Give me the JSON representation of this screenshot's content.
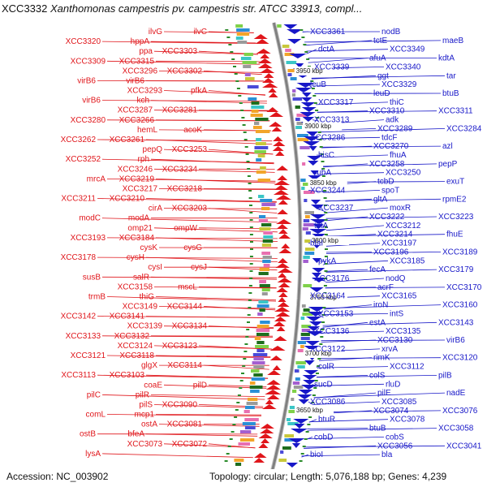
{
  "header": {
    "plot_id": "XCC3332",
    "title": "Xanthomonas campestris pv. campestris str. ATCC 33913, compl..."
  },
  "footer": {
    "accession": "Accession: NC_003902",
    "topology": "Topology: circular; Length: 5,076,188 bp; Genes: 4,239"
  },
  "colors": {
    "reverse_strand": "#e0161b",
    "forward_strand": "#1818c8",
    "backbone": "#808080",
    "tick": "#2a8a2a"
  },
  "kbp_markers": [
    "3950 kbp",
    "3900 kbp",
    "3850 kbp",
    "3800 kbp",
    "3750 kbp",
    "3700 kbp",
    "3650 kbp"
  ],
  "left_labels": [
    "ilvG",
    "ilvC",
    "XCC3320",
    "hppA",
    "ppa",
    "XCC3303",
    "XCC3309",
    "XCC3315",
    "XCC3296",
    "XCC3302",
    "virB6",
    "virB6",
    "XCC3293",
    "pfkA",
    "virB6",
    "kch",
    "XCC3287",
    "XCC3281",
    "XCC3280",
    "XCC3266",
    "hemL",
    "acoK",
    "XCC3262",
    "XCC3261",
    "pepQ",
    "XCC3253",
    "XCC3252",
    "rph",
    "XCC3246",
    "XCC3234",
    "mrcA",
    "XCC3219",
    "XCC3217",
    "XCC3218",
    "XCC3211",
    "XCC3210",
    "cirA",
    "XCC3203",
    "modC",
    "modA",
    "omp21",
    "ompW",
    "XCC3193",
    "XCC3184",
    "cysK",
    "cysG",
    "XCC3178",
    "cysH",
    "cysI",
    "cysJ",
    "susB",
    "salR",
    "XCC3158",
    "mscL",
    "trmB",
    "thiG",
    "XCC3149",
    "XCC3144",
    "XCC3142",
    "XCC3141",
    "XCC3139",
    "XCC3134",
    "XCC3133",
    "XCC3132",
    "XCC3124",
    "XCC3123",
    "XCC3121",
    "XCC3118",
    "glgX",
    "XCC3114",
    "XCC3113",
    "XCC3103",
    "coaE",
    "pilD",
    "pilC",
    "pilR",
    "pilS",
    "XCC3090",
    "comL",
    "mcp1",
    "ostA",
    "XCC3081",
    "ostB",
    "bfeA",
    "XCC3073",
    "XCC3072",
    "lysA"
  ],
  "right_labels": [
    "XCC3361",
    "nodB",
    "tctE",
    "maeB",
    "dctA",
    "XCC3349",
    "afuA",
    "kdtA",
    "XCC3339",
    "XCC3340",
    "ggt",
    "tar",
    "leuB",
    "XCC3329",
    "leuD",
    "btuB",
    "XCC3317",
    "thiC",
    "XCC3310",
    "XCC3311",
    "XCC3313",
    "adk",
    "XCC3289",
    "XCC3284",
    "XCC3286",
    "tdcF",
    "XCC3270",
    "azl",
    "hisC",
    "fhuA",
    "XCC3258",
    "pepP",
    "rubA",
    "XCC3250",
    "tcbD",
    "exuT",
    "XCC3244",
    "spoT",
    "gltA",
    "rpmE2",
    "XCC3237",
    "moxR",
    "XCC3222",
    "XCC3223",
    "tktA",
    "XCC3212",
    "XCC3214",
    "fhuE",
    "blaI",
    "XCC3197",
    "XCC3196",
    "XCC3189",
    "pykA",
    "XCC3185",
    "fecA",
    "XCC3179",
    "XCC3176",
    "nodQ",
    "acrF",
    "XCC3170",
    "XCC3164",
    "XCC3165",
    "iroN",
    "XCC3160",
    "XCC3153",
    "intS",
    "estA",
    "XCC3143",
    "XCC3136",
    "XCC3135",
    "XCC3130",
    "virB6",
    "XCC3122",
    "xrvA",
    "rimK",
    "XCC3120",
    "colR",
    "XCC3112",
    "colS",
    "pilB",
    "sucD",
    "rluD",
    "pilE",
    "nadE",
    "XCC3086",
    "XCC3085",
    "XCC3074",
    "XCC3076",
    "btuR",
    "XCC3078",
    "btuB",
    "XCC3058",
    "cobD",
    "cobS",
    "XCC3056",
    "XCC3041",
    "bioI",
    "bla"
  ]
}
